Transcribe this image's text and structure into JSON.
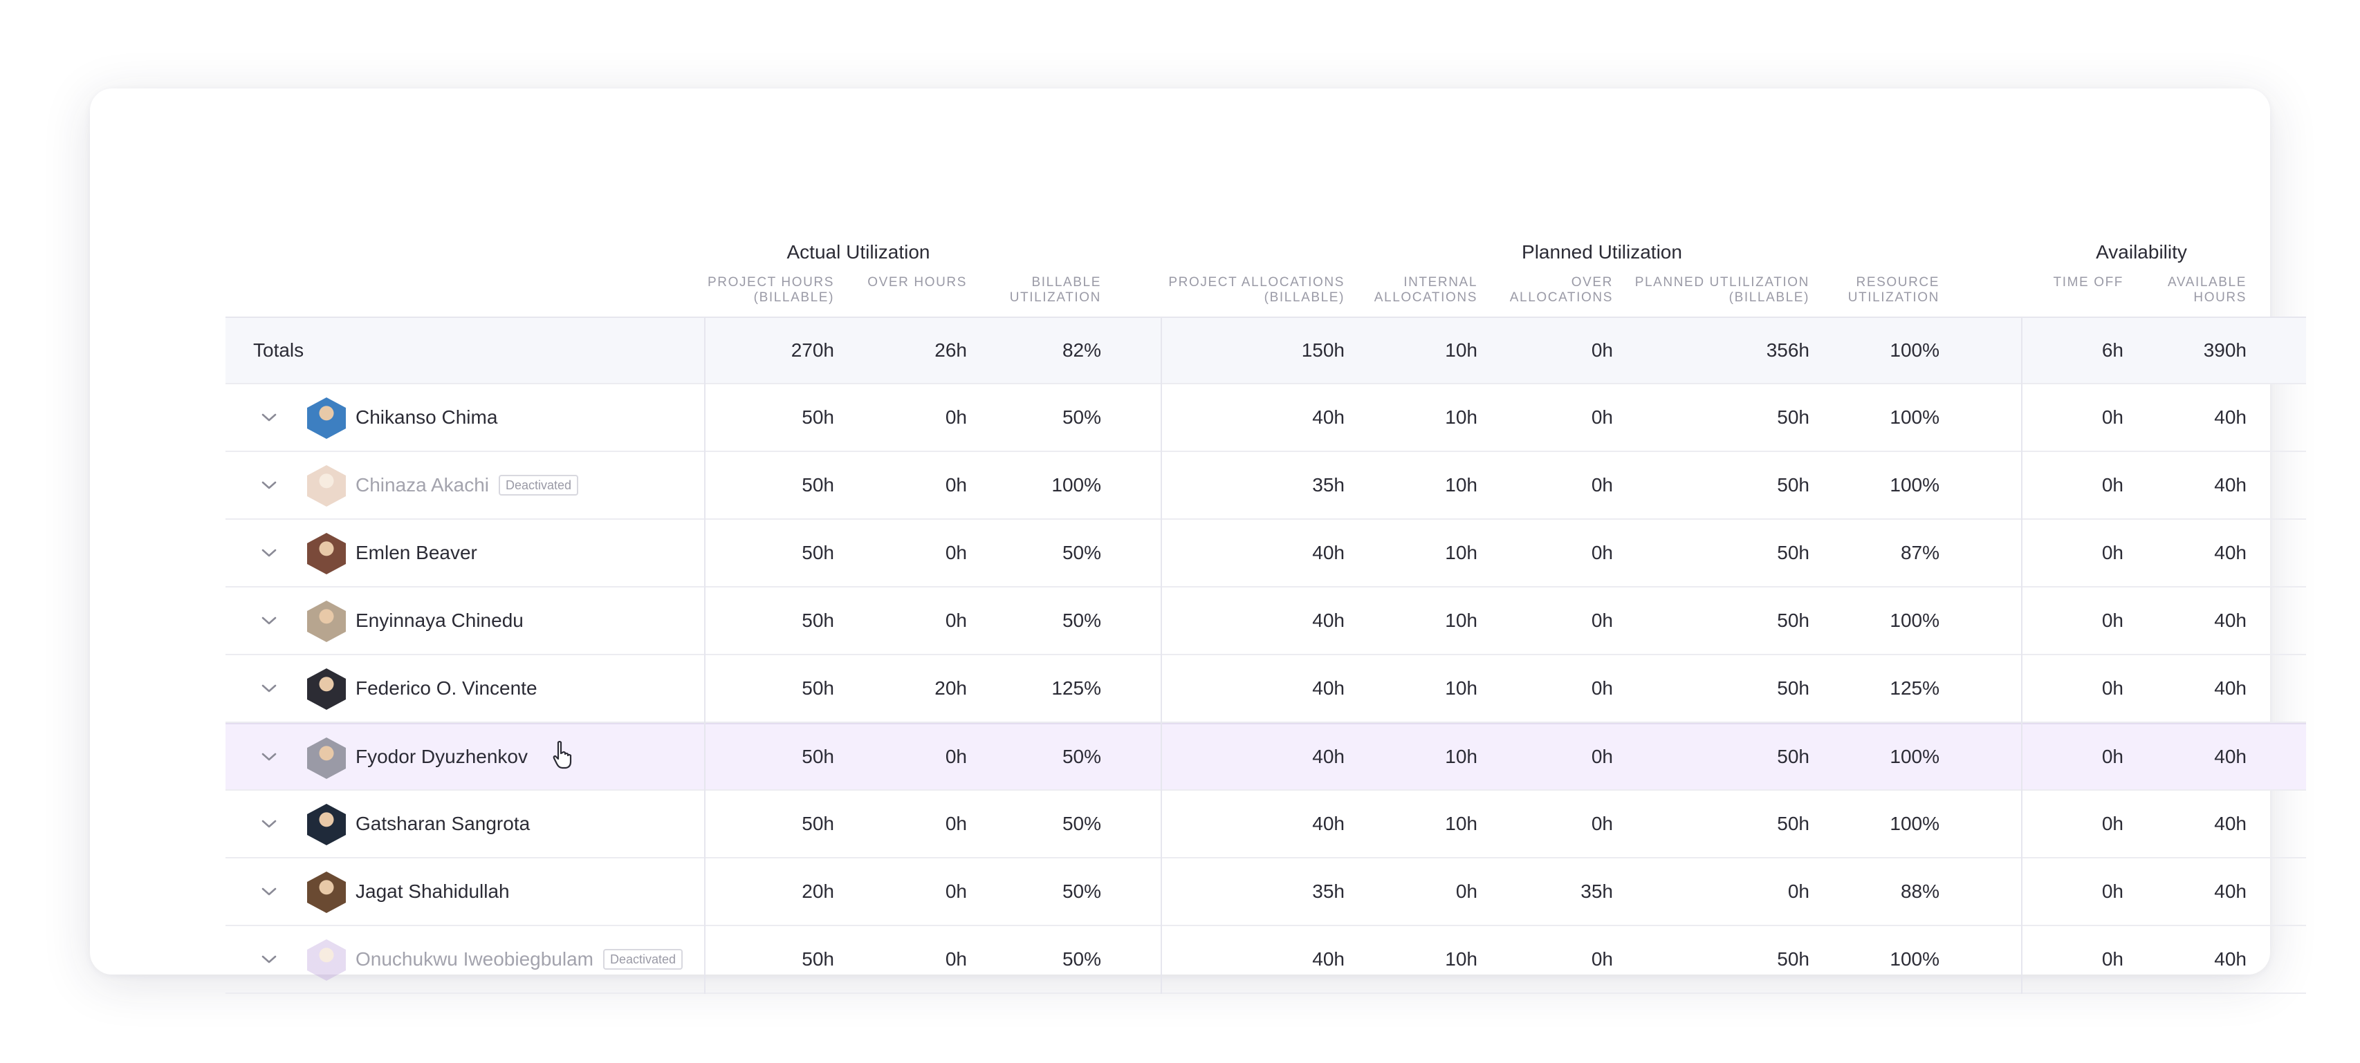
{
  "groups": {
    "actual": "Actual Utilization",
    "planned": "Planned Utilization",
    "availability": "Availability"
  },
  "columns": [
    [
      "PROJECT HOURS",
      "(BILLABLE)"
    ],
    [
      "OVER HOURS"
    ],
    [
      "BILLABLE",
      "UTILIZATION"
    ],
    [
      "PROJECT ALLOCATIONS",
      "(BILLABLE)"
    ],
    [
      "INTERNAL",
      "ALLOCATIONS"
    ],
    [
      "OVER",
      "ALLOCATIONS"
    ],
    [
      "PLANNED UTLILIZATION",
      "(BILLABLE)"
    ],
    [
      "RESOURCE",
      "UTILIZATION"
    ],
    [
      "TIME OFF"
    ],
    [
      "AVAILABLE",
      "HOURS"
    ]
  ],
  "totals": {
    "label": "Totals",
    "values": [
      "270h",
      "26h",
      "82%",
      "150h",
      "10h",
      "0h",
      "356h",
      "100%",
      "6h",
      "390h"
    ]
  },
  "rows": [
    {
      "name": "Chikanso Chima",
      "deactivated": false,
      "avatar_color": "#3d7fc1",
      "values": [
        "50h",
        "0h",
        "50%",
        "40h",
        "10h",
        "0h",
        "50h",
        "100%",
        "0h",
        "40h"
      ]
    },
    {
      "name": "Chinaza Akachi",
      "deactivated": true,
      "badge": "Deactivated",
      "avatar_color": "#c98f68",
      "values": [
        "50h",
        "0h",
        "100%",
        "35h",
        "10h",
        "0h",
        "50h",
        "100%",
        "0h",
        "40h"
      ]
    },
    {
      "name": "Emlen Beaver",
      "deactivated": false,
      "avatar_color": "#7a4a3a",
      "values": [
        "50h",
        "0h",
        "50%",
        "40h",
        "10h",
        "0h",
        "50h",
        "87%",
        "0h",
        "40h"
      ]
    },
    {
      "name": "Enyinnaya Chinedu",
      "deactivated": false,
      "avatar_color": "#b7a58f",
      "values": [
        "50h",
        "0h",
        "50%",
        "40h",
        "10h",
        "0h",
        "50h",
        "100%",
        "0h",
        "40h"
      ]
    },
    {
      "name": "Federico O. Vincente",
      "deactivated": false,
      "avatar_color": "#2c2c34",
      "values": [
        "50h",
        "20h",
        "125%",
        "40h",
        "10h",
        "0h",
        "50h",
        "125%",
        "0h",
        "40h"
      ]
    },
    {
      "name": "Fyodor Dyuzhenkov",
      "deactivated": false,
      "hover": true,
      "avatar_color": "#9a9aa6",
      "values": [
        "50h",
        "0h",
        "50%",
        "40h",
        "10h",
        "0h",
        "50h",
        "100%",
        "0h",
        "40h"
      ]
    },
    {
      "name": "Gatsharan Sangrota",
      "deactivated": false,
      "avatar_color": "#1f2a3a",
      "values": [
        "50h",
        "0h",
        "50%",
        "40h",
        "10h",
        "0h",
        "50h",
        "100%",
        "0h",
        "40h"
      ]
    },
    {
      "name": "Jagat Shahidullah",
      "deactivated": false,
      "avatar_color": "#6a4a32",
      "values": [
        "20h",
        "0h",
        "50%",
        "35h",
        "0h",
        "35h",
        "0h",
        "88%",
        "0h",
        "40h"
      ]
    },
    {
      "name": "Onuchukwu Iweobiegbulam",
      "deactivated": true,
      "badge": "Deactivated",
      "avatar_color": "#b89ad8",
      "values": [
        "50h",
        "0h",
        "50%",
        "40h",
        "10h",
        "0h",
        "50h",
        "100%",
        "0h",
        "40h"
      ]
    }
  ]
}
